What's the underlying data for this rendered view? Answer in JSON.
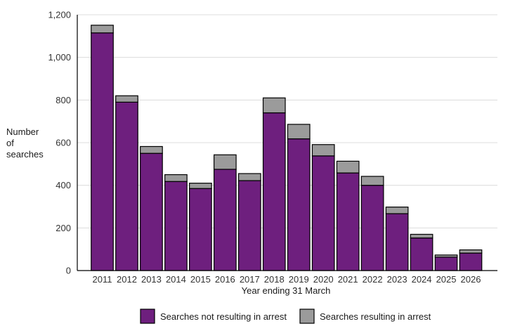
{
  "chart_data": {
    "type": "bar",
    "stacked": true,
    "title": "",
    "xlabel": "Year ending 31 March",
    "ylabel": "Number of searches",
    "ylabel_lines": [
      "Number",
      "of",
      "searches"
    ],
    "ylim": [
      0,
      1200
    ],
    "yticks": [
      0,
      200,
      400,
      600,
      800,
      1000,
      1200
    ],
    "ytick_labels": [
      "0",
      "200",
      "400",
      "600",
      "800",
      "1,000",
      "1,200"
    ],
    "grid": "horizontal",
    "legend_position": "bottom",
    "categories": [
      "2011",
      "2012",
      "2013",
      "2014",
      "2015",
      "2016",
      "2017",
      "2018",
      "2019",
      "2020",
      "2021",
      "2022",
      "2023",
      "2024",
      "2025",
      "2026"
    ],
    "series": [
      {
        "name": "Searches not resulting in arrest",
        "color": "#6e1f7e",
        "values": [
          1115,
          790,
          550,
          418,
          385,
          475,
          422,
          740,
          618,
          538,
          458,
          400,
          267,
          153,
          63,
          82
        ]
      },
      {
        "name": "Searches resulting in arrest",
        "color": "#9b9b9b",
        "values": [
          36,
          30,
          32,
          32,
          25,
          68,
          33,
          70,
          68,
          53,
          55,
          42,
          31,
          17,
          10,
          15
        ]
      }
    ]
  }
}
